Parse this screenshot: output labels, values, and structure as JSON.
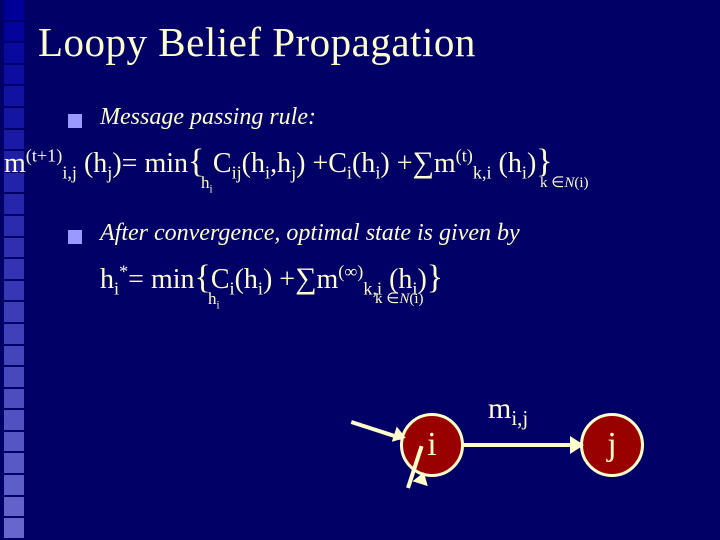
{
  "colors": {
    "background": "#000066",
    "text": "#ffffcc",
    "bullet": "#9999ff",
    "node_fill": "#990000",
    "node_border": "#ffffcc",
    "edge": "#ffffcc"
  },
  "gradient_squares": {
    "count": 25,
    "start_color": "#000099",
    "end_color": "#6666cc"
  },
  "title": "Loopy Belief Propagation",
  "bullets": [
    "Message passing rule:",
    "After convergence, optimal state is given by"
  ],
  "equations": {
    "eq1": {
      "lhs_base": "m",
      "lhs_sup": "(t+1)",
      "lhs_sub": "i,j",
      "lhs_arg": "(h",
      "lhs_arg_sub": "j",
      "lhs_close": ")= ",
      "min": "min",
      "min_under": "h",
      "min_under_sub": "i",
      "open_brace": "{ ",
      "t1": "C",
      "t1_sub": "ij",
      "t1_args": "(h",
      "t1_arg1_sub": "i",
      "t1_comma": ",h",
      "t1_arg2_sub": "j",
      "t1_close": ") +C",
      "t2_sub": "i",
      "t2_args": "(h",
      "t2_arg_sub": "i",
      "t2_close": ") +",
      "sigma": "∑",
      "t3": "m",
      "t3_sup": "(t)",
      "t3_sub": "k,i",
      "t3_args": " (h",
      "t3_arg_sub": "i",
      "t3_close": ")",
      "close_brace": "}",
      "sum_under_pre": "k ",
      "sum_under_in": "∈",
      "sum_under_N": "N",
      "sum_under_post": "(i)"
    },
    "eq2": {
      "lhs": "h",
      "lhs_sub": "i",
      "lhs_sup": "*",
      "eq": "= ",
      "min": "min",
      "min_under": "h",
      "min_under_sub": "i",
      "open_brace": "{",
      "t1": "C",
      "t1_sub": "i",
      "t1_args": "(h",
      "t1_arg_sub": "i",
      "t1_close": ") +",
      "sigma": "∑",
      "t2": "m",
      "t2_sup": "(∞)",
      "t2_sub": "k,i",
      "t2_args": " (h",
      "t2_arg_sub": "i",
      "t2_close": ")",
      "close_brace": "}",
      "sum_under_pre": "k ",
      "sum_under_in": "∈",
      "sum_under_N": "N",
      "sum_under_post": "(i)"
    }
  },
  "diagram": {
    "node_i": "i",
    "node_j": "j",
    "edge_label": "m",
    "edge_label_sub": "i,j"
  }
}
